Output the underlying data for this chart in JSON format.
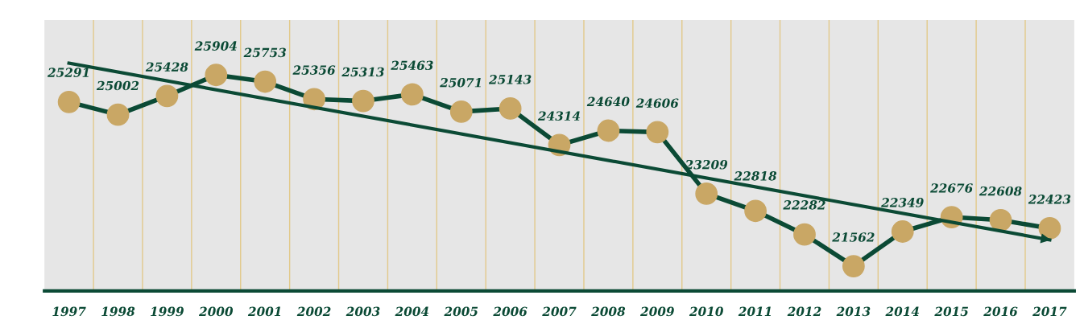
{
  "chart_data": {
    "type": "line",
    "categories": [
      "1997",
      "1998",
      "1999",
      "2000",
      "2001",
      "2002",
      "2003",
      "2004",
      "2005",
      "2006",
      "2007",
      "2008",
      "2009",
      "2010",
      "2011",
      "2012",
      "2013",
      "2014",
      "2015",
      "2016",
      "2017"
    ],
    "series": [
      {
        "color": "#0b4a35",
        "marker": "circle",
        "values": [
          25291,
          25002,
          25428,
          25904,
          25753,
          25356,
          25313,
          25463,
          25071,
          25143,
          24314,
          24640,
          24606,
          23209,
          22818,
          22282,
          21562,
          22349,
          22676,
          22608,
          22423
        ],
        "value_labels": [
          "25291",
          "25002",
          "25428",
          "25904",
          "25753",
          "25356",
          "25313",
          "25463",
          "25071",
          "25143",
          "24314",
          "24640",
          "24606",
          "23209",
          "22818",
          "22282",
          "21562",
          "22349",
          "22676",
          "22608",
          "22423"
        ]
      },
      {
        "color": "#0b4a35",
        "values": [
          26170,
          null,
          null,
          null,
          null,
          null,
          null,
          null,
          null,
          null,
          null,
          null,
          null,
          null,
          null,
          null,
          null,
          null,
          null,
          null,
          22160
        ]
      }
    ],
    "ylim": [
      21000,
      27150
    ],
    "grid": "x",
    "tick_labels": "x"
  }
}
